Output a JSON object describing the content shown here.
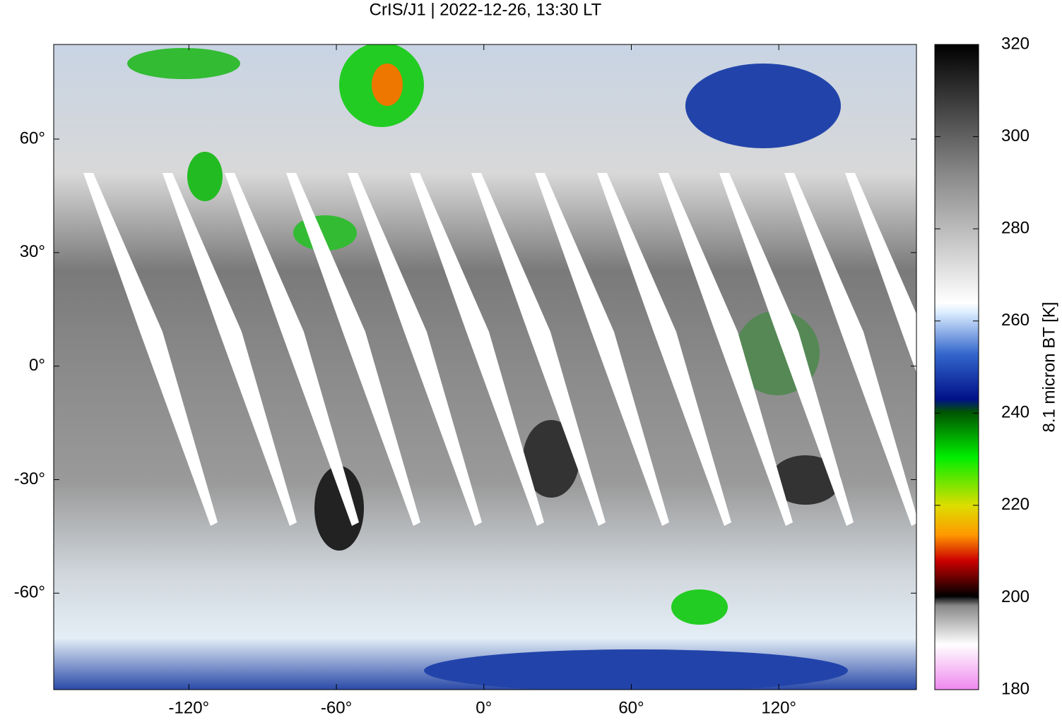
{
  "chart_data": {
    "type": "map",
    "title": "CrIS/J1 | 2022-12-26, 13:30 LT",
    "xlim": [
      -175,
      176
    ],
    "ylim": [
      -85.5,
      85
    ],
    "xticks": [
      {
        "value": -120,
        "label": "-120°"
      },
      {
        "value": -60,
        "label": "-60°"
      },
      {
        "value": 0,
        "label": "0°"
      },
      {
        "value": 60,
        "label": "60°"
      },
      {
        "value": 120,
        "label": "120°"
      }
    ],
    "yticks": [
      {
        "value": -60,
        "label": "-60°"
      },
      {
        "value": -30,
        "label": "-30°"
      },
      {
        "value": 0,
        "label": "0°"
      },
      {
        "value": 30,
        "label": "30°"
      },
      {
        "value": 60,
        "label": "60°"
      }
    ],
    "colorbar": {
      "label": "8.1 micron BT [K]",
      "lim": [
        180,
        320
      ],
      "ticks": [
        180,
        200,
        220,
        240,
        260,
        280,
        300,
        320
      ]
    }
  }
}
